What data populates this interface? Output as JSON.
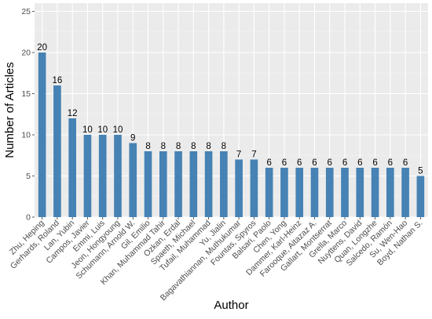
{
  "chart_data": {
    "type": "bar",
    "title": "",
    "xlabel": "Author",
    "ylabel": "Number of Articles",
    "ylim": [
      0,
      26
    ],
    "yticks": [
      0,
      5,
      10,
      15,
      20,
      25
    ],
    "grid": true,
    "legend": "none",
    "colors": {
      "bar": "#4682b4",
      "panel": "#ebebeb",
      "grid_major": "#ffffff",
      "grid_minor": "#f5f5f5"
    },
    "categories": [
      "Zhu, Heping",
      "Gerhards, Roland",
      "Lan, Yubin",
      "Campos, Javier",
      "Emmi, Luis",
      "Jeon, Hongyoung",
      "Schumann, Arnold W.",
      "Gil, Emilio",
      "Khan, Muhammad Tahir",
      "Ozkan, Erdal",
      "Spaeth, Michael",
      "Tufail, Muhammad",
      "Yu, Jialin",
      "Bagavathiannan, Muthukumar",
      "Fountas, Spyros",
      "Balsari, Paolo",
      "Chen, Yong",
      "Dammer, Karl-Heinz",
      "Farooque, Aitazaz A.",
      "Gallart, Montserrat",
      "Grella, Marco",
      "Nuyttens, David",
      "Quan, Longzhe",
      "Salcedo, Ramón",
      "Su, Wen-Hao",
      "Boyd, Nathan S."
    ],
    "values": [
      20,
      16,
      12,
      10,
      10,
      10,
      9,
      8,
      8,
      8,
      8,
      8,
      8,
      7,
      7,
      6,
      6,
      6,
      6,
      6,
      6,
      6,
      6,
      6,
      6,
      5
    ]
  }
}
